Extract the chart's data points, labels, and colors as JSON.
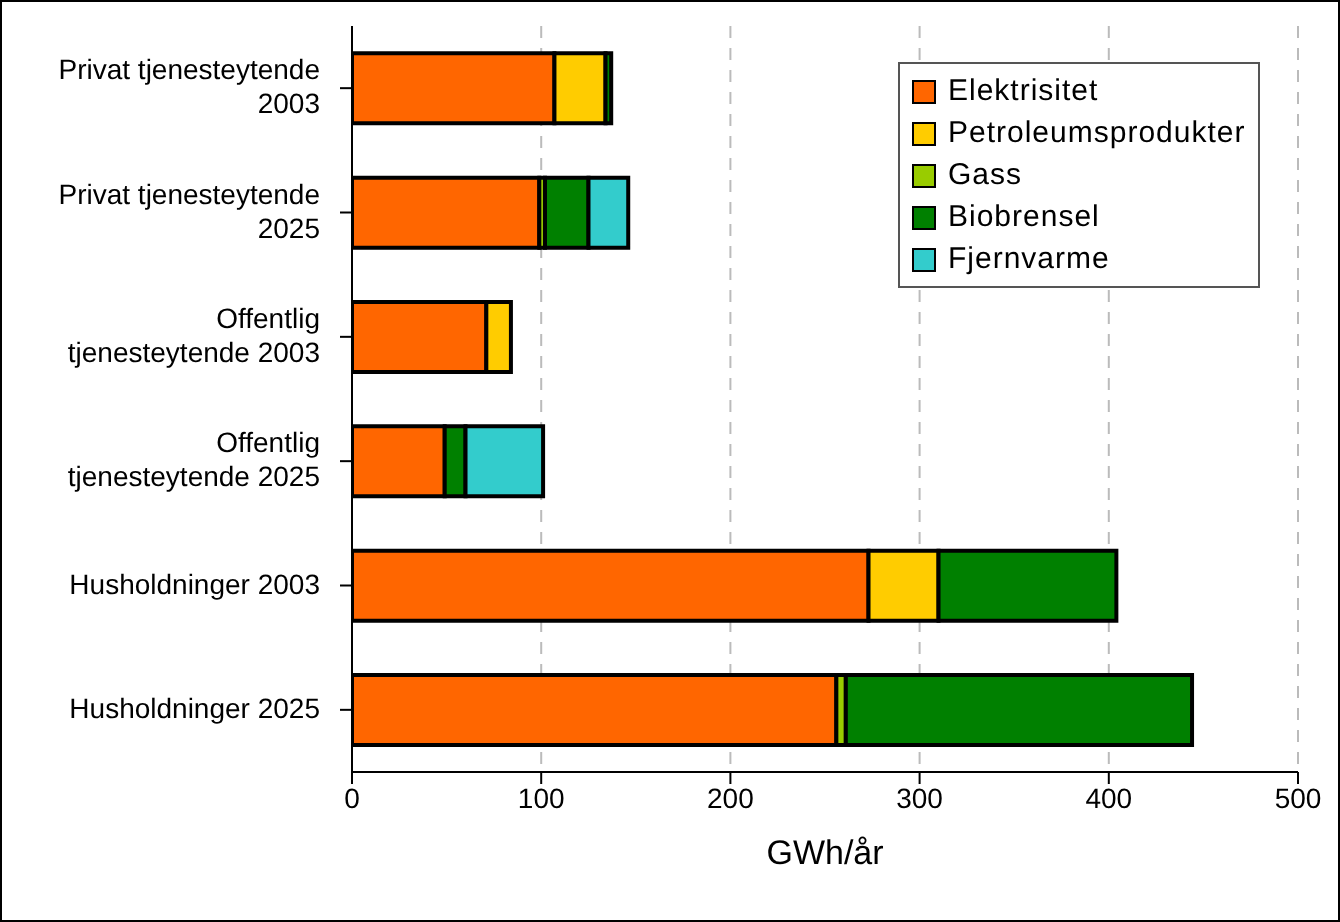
{
  "chart_data": {
    "type": "bar",
    "orientation": "horizontal",
    "stacked": true,
    "xlabel": "GWh/år",
    "categories": [
      "Privat tjenesteytende 2003",
      "Privat tjenesteytende 2025",
      "Offentlig tjenesteytende 2003",
      "Offentlig tjenesteytende 2025",
      "Husholdninger 2003",
      "Husholdninger 2025"
    ],
    "series": [
      {
        "name": "Elektrisitet",
        "color": "#ff6600",
        "values": [
          107,
          99,
          71,
          49,
          273,
          256
        ]
      },
      {
        "name": "Petroleumsprodukter",
        "color": "#ffcc00",
        "values": [
          27,
          0,
          13,
          null,
          37,
          0
        ]
      },
      {
        "name": "Gass",
        "color": "#99cc00",
        "values": [
          0,
          3,
          0,
          0,
          0,
          5
        ]
      },
      {
        "name": "Biobrensel",
        "color": "#008000",
        "values": [
          3,
          23,
          0,
          11,
          94,
          183
        ]
      },
      {
        "name": "Fjernvarme",
        "color": "#33cccc",
        "values": [
          0,
          21,
          0,
          41,
          0,
          0
        ]
      }
    ],
    "xlim": [
      0,
      500
    ],
    "xticks": [
      0,
      100,
      200,
      300,
      400,
      500
    ],
    "grid": "x",
    "legend": "top right"
  }
}
